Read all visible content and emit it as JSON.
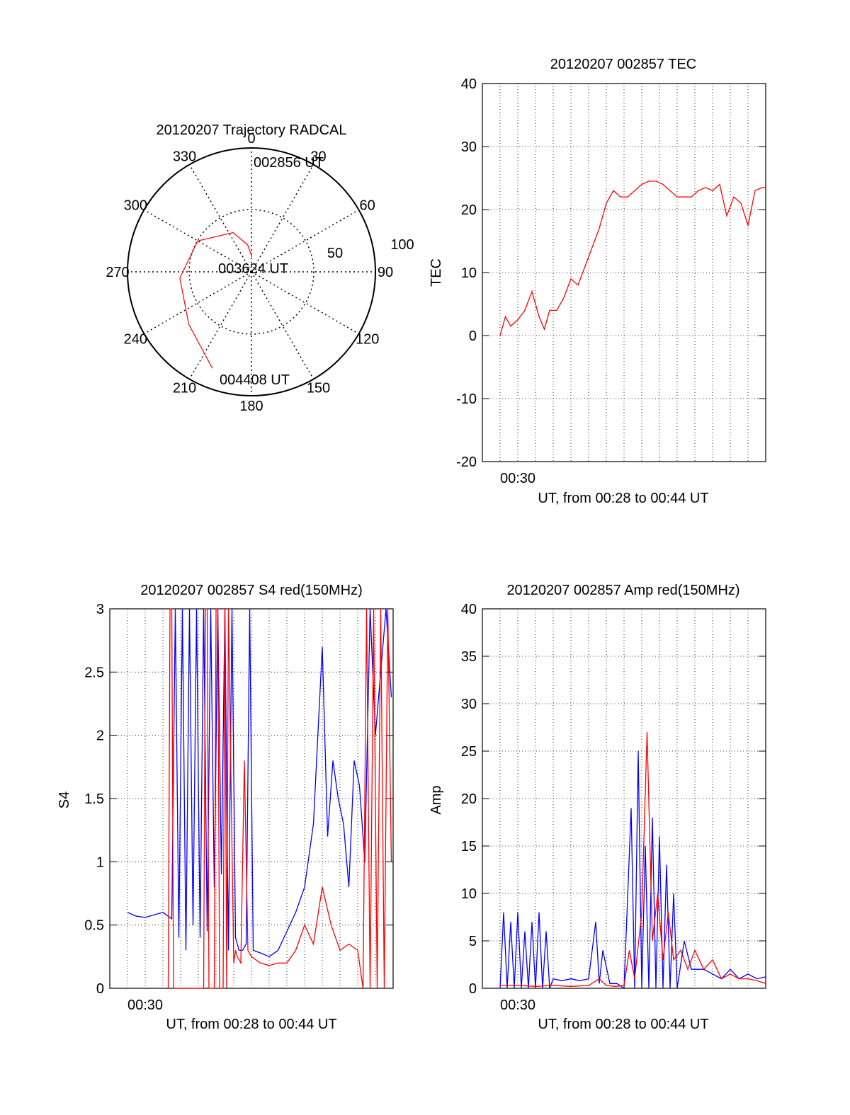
{
  "chart_data": [
    {
      "id": "polar",
      "type": "polar-trajectory",
      "title": "20120207 Trajectory RADCAL",
      "azimuth_labels": [
        "0",
        "30",
        "60",
        "90",
        "120",
        "150",
        "180",
        "210",
        "240",
        "270",
        "300",
        "330"
      ],
      "radial_max": 100,
      "radial_labels": [
        "50",
        "100"
      ],
      "track_color": "#ff0000",
      "track": [
        {
          "az": 2,
          "el": 12
        },
        {
          "az": 352,
          "el": 22
        },
        {
          "az": 335,
          "el": 35
        },
        {
          "az": 300,
          "el": 50
        },
        {
          "az": 265,
          "el": 58
        },
        {
          "az": 230,
          "el": 66
        },
        {
          "az": 202,
          "el": 84
        }
      ],
      "annotations": [
        {
          "text": "002856 UT",
          "az": 10,
          "el": 10
        },
        {
          "text": "003624 UT",
          "az": 270,
          "el": -5
        },
        {
          "text": "004408 UT",
          "az": 190,
          "el": 78
        }
      ]
    },
    {
      "id": "tec",
      "type": "line",
      "title": "20120207 002857 TEC",
      "xlabel": "UT, from 00:28 to 00:44 UT",
      "ylabel": "TEC",
      "xlim": [
        0,
        16
      ],
      "ylim": [
        -20,
        40
      ],
      "yticks": [
        -20,
        -10,
        0,
        10,
        20,
        30,
        40
      ],
      "xtick_label": "00:30",
      "xtick_label_at": 2,
      "series": [
        {
          "name": "TEC",
          "color": "#ff0000",
          "x": [
            1.0,
            1.3,
            1.6,
            2.0,
            2.4,
            2.8,
            3.2,
            3.5,
            3.8,
            4.2,
            4.6,
            5.0,
            5.4,
            5.8,
            6.2,
            6.6,
            7.0,
            7.4,
            7.8,
            8.2,
            8.6,
            9.0,
            9.4,
            9.8,
            10.2,
            10.6,
            11.0,
            11.4,
            11.8,
            12.2,
            12.6,
            13.0,
            13.4,
            13.8,
            14.2,
            14.6,
            15.0,
            15.4,
            15.8,
            16.0
          ],
          "y": [
            0,
            3,
            1.5,
            2.5,
            4,
            7,
            3,
            1,
            4,
            4,
            6,
            9,
            8,
            11,
            14,
            17,
            21,
            23,
            22,
            22,
            23,
            24,
            24.5,
            24.5,
            24,
            23,
            22,
            22,
            22,
            23,
            23.5,
            23,
            24,
            19,
            22,
            21,
            17.5,
            23,
            23.5,
            23.5
          ]
        }
      ]
    },
    {
      "id": "s4",
      "type": "line",
      "title": "20120207 002857 S4 red(150MHz)",
      "xlabel": "UT, from 00:28 to 00:44 UT",
      "ylabel": "S4",
      "xlim": [
        0,
        16
      ],
      "ylim": [
        0,
        3
      ],
      "yticks": [
        "0",
        "0.5",
        "1",
        "1.5",
        "2",
        "2.5",
        "3"
      ],
      "xtick_label": "00:30",
      "xtick_label_at": 2,
      "series": [
        {
          "name": "blue",
          "color": "#0000ff",
          "x": [
            1.0,
            1.5,
            2.0,
            2.5,
            3.0,
            3.5,
            3.7,
            3.9,
            4.1,
            4.3,
            4.5,
            4.7,
            4.9,
            5.1,
            5.3,
            5.5,
            5.7,
            5.9,
            6.1,
            6.3,
            6.5,
            6.7,
            6.9,
            7.1,
            7.3,
            7.5,
            7.7,
            7.9,
            8.1,
            8.5,
            9.0,
            9.5,
            10.0,
            10.5,
            11.0,
            11.5,
            12.0,
            12.3,
            12.6,
            12.9,
            13.2,
            13.5,
            13.8,
            14.1,
            14.4,
            14.7,
            15.0,
            15.3,
            15.6,
            15.9
          ],
          "y": [
            0.6,
            0.57,
            0.56,
            0.58,
            0.6,
            0.55,
            3,
            0.4,
            3,
            0.3,
            3,
            0.5,
            3,
            0.4,
            3,
            0.45,
            3,
            0.8,
            3,
            0.9,
            3,
            0.3,
            3,
            0.4,
            0.3,
            0.3,
            0.35,
            3,
            0.3,
            0.28,
            0.25,
            0.3,
            0.45,
            0.6,
            0.8,
            1.3,
            2.7,
            1.2,
            1.8,
            1.5,
            1.3,
            0.8,
            1.8,
            1.6,
            1.0,
            3,
            2.0,
            2.5,
            3,
            2.3
          ]
        },
        {
          "name": "red",
          "color": "#ff0000",
          "x": [
            3.3,
            3.4,
            3.5,
            3.6,
            5.3,
            5.4,
            5.5,
            5.6,
            5.9,
            6.0,
            6.1,
            6.2,
            6.4,
            6.5,
            6.6,
            6.7,
            7.0,
            7.1,
            7.2,
            7.4,
            7.6,
            7.8,
            8.0,
            8.5,
            9.0,
            9.5,
            10.0,
            10.5,
            11.0,
            11.5,
            12.0,
            12.5,
            13.0,
            13.5,
            14.0,
            14.3,
            14.5,
            14.7,
            14.9,
            15.1,
            15.3,
            15.5,
            15.7,
            15.9
          ],
          "y": [
            0,
            3,
            3,
            0,
            0,
            3,
            3,
            0,
            0,
            3,
            3,
            0,
            0,
            3,
            0,
            3,
            0.2,
            0.3,
            0.25,
            0.2,
            1.8,
            0.3,
            0.25,
            0.2,
            0.18,
            0.2,
            0.2,
            0.3,
            0.5,
            0.35,
            0.8,
            0.5,
            0.3,
            0.35,
            0.3,
            0,
            3,
            0,
            3,
            0,
            3,
            0,
            3,
            1.0
          ]
        }
      ]
    },
    {
      "id": "amp",
      "type": "line",
      "title": "20120207 002857 Amp red(150MHz)",
      "xlabel": "UT, from 00:28 to 00:44 UT",
      "ylabel": "Amp",
      "xlim": [
        0,
        16
      ],
      "ylim": [
        0,
        40
      ],
      "yticks": [
        0,
        5,
        10,
        15,
        20,
        25,
        30,
        35,
        40
      ],
      "xtick_label": "00:30",
      "xtick_label_at": 2,
      "series": [
        {
          "name": "blue",
          "color": "#0000ff",
          "x": [
            1.0,
            1.2,
            1.4,
            1.6,
            1.8,
            2.0,
            2.2,
            2.4,
            2.6,
            2.8,
            3.0,
            3.2,
            3.4,
            3.6,
            3.8,
            4.0,
            4.5,
            5.0,
            5.5,
            6.0,
            6.4,
            6.6,
            6.8,
            7.2,
            7.6,
            8.0,
            8.4,
            8.6,
            8.8,
            9.0,
            9.2,
            9.4,
            9.6,
            9.8,
            10.0,
            10.2,
            10.4,
            10.6,
            10.8,
            11.0,
            11.4,
            11.8,
            12.5,
            13.0,
            13.5,
            14.0,
            14.5,
            15.0,
            15.5,
            16.0
          ],
          "y": [
            0,
            8,
            0,
            7,
            0,
            8,
            0,
            6,
            0,
            7,
            0,
            8,
            0,
            6,
            0,
            1,
            0.8,
            1,
            0.8,
            1,
            7,
            0.5,
            4,
            0.5,
            0.5,
            0,
            19,
            0,
            25,
            0,
            15,
            0,
            18,
            0,
            16,
            0,
            13,
            0,
            10,
            0,
            5,
            2,
            2,
            1.5,
            1,
            2,
            1,
            1.5,
            1,
            1.2
          ]
        },
        {
          "name": "red",
          "color": "#ff0000",
          "x": [
            1.0,
            2.0,
            3.0,
            4.0,
            5.0,
            6.0,
            6.6,
            7.0,
            7.5,
            8.0,
            8.3,
            8.6,
            9.0,
            9.3,
            9.6,
            9.9,
            10.2,
            10.5,
            10.8,
            11.2,
            11.6,
            12.0,
            12.5,
            13.0,
            13.5,
            14.0,
            14.5,
            15.0,
            15.5,
            16.0
          ],
          "y": [
            0.3,
            0.3,
            0.2,
            0.3,
            0.2,
            0.3,
            1,
            0.3,
            0.2,
            0.3,
            4,
            1,
            8,
            27,
            5,
            10,
            3,
            8,
            3,
            4,
            2,
            4,
            2,
            3,
            1,
            1.5,
            1,
            1,
            0.8,
            0.5
          ]
        }
      ]
    }
  ]
}
